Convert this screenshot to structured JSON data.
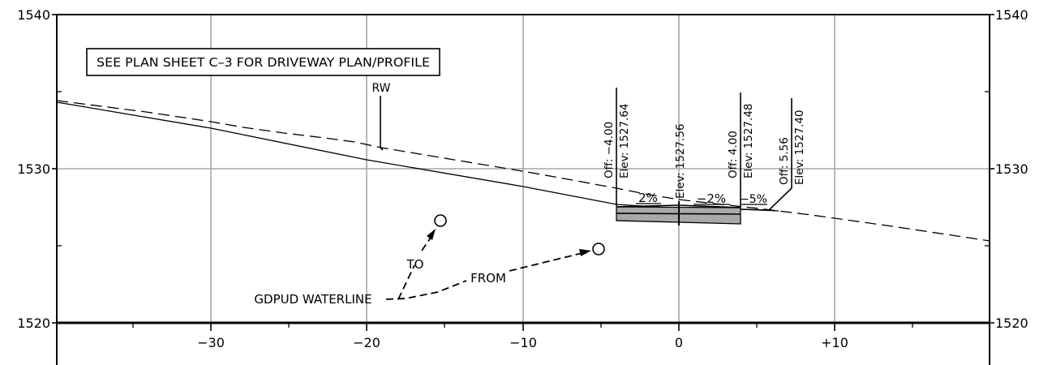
{
  "elevation_labels": {
    "e1540": "1540",
    "e1530": "1530",
    "e1520": "1520"
  },
  "station_labels": [
    "−30",
    "−20",
    "−10",
    "0",
    "+10"
  ],
  "note": "SEE PLAN SHEET C–3 FOR DRIVEWAY PLAN/PROFILE",
  "rw_label": "RW",
  "points": [
    {
      "off": "Off: −4.00",
      "elev": "Elev: 1527.64"
    },
    {
      "elev": "Elev: 1527.56"
    },
    {
      "off": "Off: 4.00",
      "elev": "Elev: 1527.48"
    },
    {
      "off": "Off: 5.56",
      "elev": "Elev: 1527.40"
    }
  ],
  "slopes": {
    "left": "2%",
    "right": "−2%",
    "shoulder": "−5%"
  },
  "waterline": {
    "to": "TO",
    "from": "FROM",
    "label": "GDPUD WATERLINE"
  },
  "colors": {
    "grid": "#a6a6a6",
    "pavement": "#a9a9a9",
    "ink": "#000000"
  }
}
